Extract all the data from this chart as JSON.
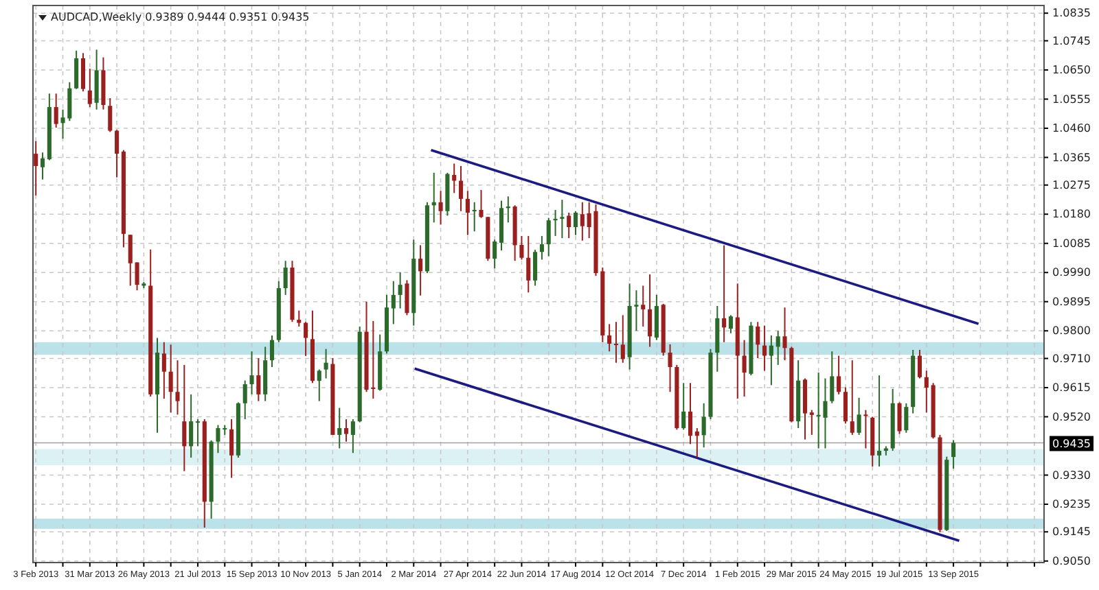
{
  "chart_data": {
    "type": "candlestick",
    "title": "AUDCAD,Weekly 0.9389 0.9444 0.9351 0.9435",
    "x": [
      "2013-02-03",
      "2013-02-10",
      "2013-02-17",
      "2013-02-24",
      "2013-03-03",
      "2013-03-10",
      "2013-03-17",
      "2013-03-24",
      "2013-03-31",
      "2013-04-07",
      "2013-04-14",
      "2013-04-21",
      "2013-04-28",
      "2013-05-05",
      "2013-05-12",
      "2013-05-19",
      "2013-05-26",
      "2013-06-02",
      "2013-06-09",
      "2013-06-16",
      "2013-06-23",
      "2013-06-30",
      "2013-07-07",
      "2013-07-14",
      "2013-07-21",
      "2013-07-28",
      "2013-08-04",
      "2013-08-11",
      "2013-08-18",
      "2013-08-25",
      "2013-09-01",
      "2013-09-08",
      "2013-09-15",
      "2013-09-22",
      "2013-09-29",
      "2013-10-06",
      "2013-10-13",
      "2013-10-20",
      "2013-10-27",
      "2013-11-03",
      "2013-11-10",
      "2013-11-17",
      "2013-11-24",
      "2013-12-01",
      "2013-12-08",
      "2013-12-15",
      "2013-12-22",
      "2013-12-29",
      "2014-01-05",
      "2014-01-12",
      "2014-01-19",
      "2014-01-26",
      "2014-02-02",
      "2014-02-09",
      "2014-02-16",
      "2014-02-23",
      "2014-03-02",
      "2014-03-09",
      "2014-03-16",
      "2014-03-23",
      "2014-03-30",
      "2014-04-06",
      "2014-04-13",
      "2014-04-20",
      "2014-04-27",
      "2014-05-04",
      "2014-05-11",
      "2014-05-18",
      "2014-05-25",
      "2014-06-01",
      "2014-06-08",
      "2014-06-15",
      "2014-06-22",
      "2014-06-29",
      "2014-07-06",
      "2014-07-13",
      "2014-07-20",
      "2014-07-27",
      "2014-08-03",
      "2014-08-10",
      "2014-08-17",
      "2014-08-24",
      "2014-08-31",
      "2014-09-07",
      "2014-09-14",
      "2014-09-21",
      "2014-09-28",
      "2014-10-05",
      "2014-10-12",
      "2014-10-19",
      "2014-10-26",
      "2014-11-02",
      "2014-11-09",
      "2014-11-16",
      "2014-11-23",
      "2014-11-30",
      "2014-12-07",
      "2014-12-14",
      "2014-12-21",
      "2014-12-28",
      "2015-01-04",
      "2015-01-11",
      "2015-01-18",
      "2015-01-25",
      "2015-02-01",
      "2015-02-08",
      "2015-02-15",
      "2015-02-22",
      "2015-03-01",
      "2015-03-08",
      "2015-03-15",
      "2015-03-22",
      "2015-03-29",
      "2015-04-05",
      "2015-04-12",
      "2015-04-19",
      "2015-04-26",
      "2015-05-03",
      "2015-05-10",
      "2015-05-17",
      "2015-05-24",
      "2015-05-31",
      "2015-06-07",
      "2015-06-14",
      "2015-06-21",
      "2015-06-28",
      "2015-07-05",
      "2015-07-12",
      "2015-07-19",
      "2015-07-26",
      "2015-08-02",
      "2015-08-09",
      "2015-08-16",
      "2015-08-23",
      "2015-08-30",
      "2015-09-06",
      "2015-09-13"
    ],
    "ohlc": [
      [
        1.0377,
        1.0418,
        1.0241,
        1.0337
      ],
      [
        1.0333,
        1.0381,
        1.0293,
        1.0362
      ],
      [
        1.0359,
        1.0573,
        1.0356,
        1.0529
      ],
      [
        1.0529,
        1.0573,
        1.0462,
        1.0474
      ],
      [
        1.0477,
        1.0521,
        1.0426,
        1.0495
      ],
      [
        1.0492,
        1.061,
        1.0484,
        1.059
      ],
      [
        1.059,
        1.0713,
        1.0588,
        1.0688
      ],
      [
        1.0688,
        1.0705,
        1.058,
        1.0588
      ],
      [
        1.0583,
        1.0654,
        1.0529,
        1.0539
      ],
      [
        1.0543,
        1.0716,
        1.0521,
        1.0649
      ],
      [
        1.0649,
        1.0691,
        1.0521,
        1.0536
      ],
      [
        1.0533,
        1.0558,
        1.0448,
        1.0452
      ],
      [
        1.0452,
        1.0455,
        1.03,
        1.0377
      ],
      [
        1.0384,
        1.0389,
        1.0072,
        1.0116
      ],
      [
        1.0113,
        1.0113,
        0.9947,
        1.002
      ],
      [
        1.0023,
        1.0023,
        0.9932,
        0.995
      ],
      [
        0.9947,
        0.9959,
        0.9939,
        0.9954
      ],
      [
        0.9947,
        1.0065,
        0.9586,
        0.9593
      ],
      [
        0.9593,
        0.9777,
        0.9468,
        0.9729
      ],
      [
        0.9726,
        0.9763,
        0.9579,
        0.9667
      ],
      [
        0.9667,
        0.9755,
        0.9534,
        0.9601
      ],
      [
        0.9601,
        0.9704,
        0.9527,
        0.9571
      ],
      [
        0.9505,
        0.9689,
        0.9343,
        0.9424
      ],
      [
        0.9424,
        0.9593,
        0.9387,
        0.9505
      ],
      [
        0.9502,
        0.9512,
        0.9424,
        0.9505
      ],
      [
        0.9505,
        0.9512,
        0.9159,
        0.9243
      ],
      [
        0.9243,
        0.9443,
        0.9188,
        0.9439
      ],
      [
        0.9439,
        0.9493,
        0.9402,
        0.9483
      ],
      [
        0.948,
        0.9493,
        0.9461,
        0.9483
      ],
      [
        0.9479,
        0.9512,
        0.9321,
        0.9394
      ],
      [
        0.9394,
        0.9567,
        0.9387,
        0.9564
      ],
      [
        0.9564,
        0.9638,
        0.9512,
        0.9626
      ],
      [
        0.9626,
        0.9733,
        0.9593,
        0.9655
      ],
      [
        0.9655,
        0.9711,
        0.9571,
        0.9593
      ],
      [
        0.9593,
        0.9748,
        0.9571,
        0.9704
      ],
      [
        0.9704,
        0.9785,
        0.9682,
        0.977
      ],
      [
        0.977,
        0.9962,
        0.9763,
        0.9939
      ],
      [
        0.9939,
        1.0028,
        0.9917,
        1.0006
      ],
      [
        1.0006,
        1.0028,
        0.9829,
        0.9836
      ],
      [
        0.9836,
        0.9866,
        0.9814,
        0.9826
      ],
      [
        0.9826,
        0.9829,
        0.9718,
        0.9777
      ],
      [
        0.9773,
        0.9866,
        0.963,
        0.9637
      ],
      [
        0.9637,
        0.9674,
        0.9571,
        0.967
      ],
      [
        0.9674,
        0.9741,
        0.9645,
        0.9696
      ],
      [
        0.9692,
        0.9711,
        0.9461,
        0.9461
      ],
      [
        0.9461,
        0.9549,
        0.9417,
        0.9483
      ],
      [
        0.9483,
        0.9512,
        0.9439,
        0.9464
      ],
      [
        0.9461,
        0.9512,
        0.9402,
        0.9505
      ],
      [
        0.9505,
        0.9814,
        0.9502,
        0.9797
      ],
      [
        0.9797,
        0.9895,
        0.9601,
        0.9608
      ],
      [
        0.9615,
        0.9832,
        0.9579,
        0.9611
      ],
      [
        0.9608,
        0.9788,
        0.9605,
        0.9733
      ],
      [
        0.9733,
        0.9917,
        0.9726,
        0.9876
      ],
      [
        0.9873,
        0.9962,
        0.9822,
        0.9917
      ],
      [
        0.9917,
        0.9991,
        0.9873,
        0.995
      ],
      [
        0.9954,
        0.9965,
        0.9851,
        0.9858
      ],
      [
        0.9858,
        1.0097,
        0.9817,
        1.0035
      ],
      [
        1.0035,
        1.0079,
        0.9915,
        0.9994
      ],
      [
        0.9994,
        1.0219,
        0.9988,
        1.0209
      ],
      [
        1.0209,
        1.0315,
        1.0153,
        1.0219
      ],
      [
        1.0219,
        1.0256,
        1.0146,
        1.019
      ],
      [
        1.019,
        1.0315,
        1.0175,
        1.0311
      ],
      [
        1.0308,
        1.0345,
        1.0249,
        1.0289
      ],
      [
        1.0289,
        1.0337,
        1.019,
        1.023
      ],
      [
        1.023,
        1.0256,
        1.0112,
        1.0185
      ],
      [
        1.019,
        1.0219,
        1.0124,
        1.0194
      ],
      [
        1.0194,
        1.0259,
        1.0168,
        1.0171
      ],
      [
        1.0171,
        1.0171,
        1.0028,
        1.0035
      ],
      [
        1.0035,
        1.0097,
        1.0003,
        1.0091
      ],
      [
        1.0087,
        1.0224,
        1.0062,
        1.02
      ],
      [
        1.02,
        1.0238,
        1.0153,
        1.0205
      ],
      [
        1.0205,
        1.0209,
        1.0028,
        1.0079
      ],
      [
        1.008,
        1.0109,
        1.0032,
        1.0038
      ],
      [
        1.0038,
        1.0109,
        0.9925,
        0.9964
      ],
      [
        0.9964,
        1.0064,
        0.9947,
        1.0057
      ],
      [
        1.0057,
        1.0109,
        1.0032,
        1.0082
      ],
      [
        1.0082,
        1.0168,
        1.0043,
        1.016
      ],
      [
        1.016,
        1.0194,
        1.0109,
        1.0165
      ],
      [
        1.0165,
        1.0227,
        1.0102,
        1.0171
      ],
      [
        1.0175,
        1.0185,
        1.0102,
        1.0138
      ],
      [
        1.0138,
        1.019,
        1.0112,
        1.0185
      ],
      [
        1.018,
        1.0219,
        1.0094,
        1.0141
      ],
      [
        1.0183,
        1.0219,
        1.0102,
        1.0138
      ],
      [
        1.019,
        1.0212,
        0.9979,
        0.9988
      ],
      [
        0.9994,
        1.0006,
        0.9763,
        0.9785
      ],
      [
        0.9785,
        0.9822,
        0.9733,
        0.9758
      ],
      [
        0.9758,
        0.9829,
        0.9696,
        0.9755
      ],
      [
        0.9755,
        0.9851,
        0.9696,
        0.9708
      ],
      [
        0.9714,
        0.9954,
        0.9674,
        0.9881
      ],
      [
        0.9879,
        0.9932,
        0.98,
        0.9885
      ],
      [
        0.9885,
        0.9947,
        0.9814,
        0.987
      ],
      [
        0.987,
        0.9984,
        0.9748,
        0.9782
      ],
      [
        0.9778,
        0.9917,
        0.977,
        0.9881
      ],
      [
        0.9885,
        0.9888,
        0.9719,
        0.9729
      ],
      [
        0.9729,
        0.9756,
        0.9601,
        0.9682
      ],
      [
        0.9682,
        0.9689,
        0.9478,
        0.9483
      ],
      [
        0.9483,
        0.963,
        0.9478,
        0.9537
      ],
      [
        0.9537,
        0.963,
        0.9431,
        0.9458
      ],
      [
        0.9472,
        0.9483,
        0.9387,
        0.9458
      ],
      [
        0.946,
        0.9564,
        0.942,
        0.952
      ],
      [
        0.952,
        0.9741,
        0.9512,
        0.9729
      ],
      [
        0.9729,
        0.9881,
        0.9667,
        0.9841
      ],
      [
        0.9841,
        1.0079,
        0.9763,
        0.9811
      ],
      [
        0.9807,
        0.9851,
        0.9792,
        0.9847
      ],
      [
        0.9844,
        0.9954,
        0.9579,
        0.9719
      ],
      [
        0.9719,
        0.977,
        0.9586,
        0.9664
      ],
      [
        0.966,
        0.9829,
        0.9655,
        0.9817
      ],
      [
        0.9814,
        0.9829,
        0.9711,
        0.9755
      ],
      [
        0.9752,
        0.9817,
        0.967,
        0.9719
      ],
      [
        0.9719,
        0.9785,
        0.9623,
        0.9752
      ],
      [
        0.9748,
        0.98,
        0.9689,
        0.9782
      ],
      [
        0.9782,
        0.9876,
        0.9704,
        0.9744
      ],
      [
        0.9744,
        0.9748,
        0.9502,
        0.9505
      ],
      [
        0.9505,
        0.9704,
        0.9483,
        0.9638
      ],
      [
        0.9641,
        0.9645,
        0.9446,
        0.9531
      ],
      [
        0.9534,
        0.9542,
        0.9461,
        0.9526
      ],
      [
        0.9523,
        0.9664,
        0.9417,
        0.9526
      ],
      [
        0.9517,
        0.9645,
        0.9417,
        0.9571
      ],
      [
        0.9571,
        0.9733,
        0.9564,
        0.9652
      ],
      [
        0.9652,
        0.9719,
        0.9593,
        0.9601
      ],
      [
        0.9601,
        0.9616,
        0.9498,
        0.9505
      ],
      [
        0.9505,
        0.9704,
        0.9461,
        0.9468
      ],
      [
        0.9468,
        0.9582,
        0.9461,
        0.9527
      ],
      [
        0.9527,
        0.9542,
        0.9417,
        0.9523
      ],
      [
        0.9517,
        0.952,
        0.9358,
        0.9394
      ],
      [
        0.9394,
        0.9655,
        0.9358,
        0.9409
      ],
      [
        0.9409,
        0.9424,
        0.9394,
        0.9417
      ],
      [
        0.9417,
        0.9611,
        0.9409,
        0.9564
      ],
      [
        0.9564,
        0.9567,
        0.9464,
        0.9473
      ],
      [
        0.9476,
        0.9564,
        0.9468,
        0.9552
      ],
      [
        0.9552,
        0.9738,
        0.9531,
        0.9719
      ],
      [
        0.9719,
        0.9738,
        0.9645,
        0.9649
      ],
      [
        0.9649,
        0.967,
        0.9534,
        0.9615
      ],
      [
        0.9623,
        0.963,
        0.9449,
        0.9453
      ],
      [
        0.9453,
        0.9461,
        0.9144,
        0.9151
      ],
      [
        0.9151,
        0.939,
        0.9148,
        0.938
      ],
      [
        0.9389,
        0.9444,
        0.9351,
        0.9435
      ]
    ],
    "series": [
      {
        "type": "line",
        "x": [
          "2014-03-20",
          "2015-10-09"
        ],
        "values": [
          1.0389,
          0.9823
        ],
        "color": "#1c1c80"
      },
      {
        "type": "line",
        "x": [
          "2014-03-03",
          "2015-09-19"
        ],
        "values": [
          0.9677,
          0.9116
        ],
        "color": "#1c1c80"
      }
    ],
    "bands": [
      {
        "axis": "y",
        "from": 0.9155,
        "to": 0.9188,
        "color": "#a9dbe2"
      },
      {
        "axis": "y",
        "from": 0.9362,
        "to": 0.9415,
        "color": "#d3edf1"
      },
      {
        "axis": "y",
        "from": 0.9722,
        "to": 0.9763,
        "color": "#a9dbe2"
      }
    ],
    "ref_lines": [
      {
        "axis": "y",
        "value": 0.9435,
        "label": "0.9435",
        "color": "#a0a0a0"
      }
    ],
    "xlim": [
      "2013-01-31",
      "2015-12-16"
    ],
    "xticks": [
      {
        "value": "2013-02-03",
        "label": "3 Feb 2013"
      },
      {
        "value": "2013-03-03",
        "label": null
      },
      {
        "value": "2013-03-31",
        "label": "31 Mar 2013"
      },
      {
        "value": "2013-04-28",
        "label": null
      },
      {
        "value": "2013-05-26",
        "label": "26 May 2013"
      },
      {
        "value": "2013-06-23",
        "label": null
      },
      {
        "value": "2013-07-21",
        "label": "21 Jul 2013"
      },
      {
        "value": "2013-08-18",
        "label": null
      },
      {
        "value": "2013-09-15",
        "label": "15 Sep 2013"
      },
      {
        "value": "2013-10-13",
        "label": null
      },
      {
        "value": "2013-11-10",
        "label": "10 Nov 2013"
      },
      {
        "value": "2013-12-08",
        "label": null
      },
      {
        "value": "2014-01-05",
        "label": "5 Jan 2014"
      },
      {
        "value": "2014-02-02",
        "label": null
      },
      {
        "value": "2014-03-02",
        "label": "2 Mar 2014"
      },
      {
        "value": "2014-03-30",
        "label": null
      },
      {
        "value": "2014-04-27",
        "label": "27 Apr 2014"
      },
      {
        "value": "2014-05-25",
        "label": null
      },
      {
        "value": "2014-06-22",
        "label": "22 Jun 2014"
      },
      {
        "value": "2014-07-20",
        "label": null
      },
      {
        "value": "2014-08-17",
        "label": "17 Aug 2014"
      },
      {
        "value": "2014-09-14",
        "label": null
      },
      {
        "value": "2014-10-12",
        "label": "12 Oct 2014"
      },
      {
        "value": "2014-11-09",
        "label": null
      },
      {
        "value": "2014-12-07",
        "label": "7 Dec 2014"
      },
      {
        "value": "2015-01-04",
        "label": null
      },
      {
        "value": "2015-02-01",
        "label": "1 Feb 2015"
      },
      {
        "value": "2015-03-01",
        "label": null
      },
      {
        "value": "2015-03-29",
        "label": "29 Mar 2015"
      },
      {
        "value": "2015-04-26",
        "label": null
      },
      {
        "value": "2015-05-24",
        "label": "24 May 2015"
      },
      {
        "value": "2015-06-21",
        "label": null
      },
      {
        "value": "2015-07-19",
        "label": "19 Jul 2015"
      },
      {
        "value": "2015-08-16",
        "label": null
      },
      {
        "value": "2015-09-13",
        "label": "13 Sep 2015"
      },
      {
        "value": "2015-10-11",
        "label": null
      },
      {
        "value": "2015-11-08",
        "label": null
      },
      {
        "value": "2015-12-06",
        "label": null
      }
    ],
    "ylim": [
      0.9045,
      1.086
    ],
    "yticks": [
      1.0835,
      1.0745,
      {
        "value": 1.065,
        "label": "1.0650"
      },
      1.0555,
      {
        "value": 1.046,
        "label": "1.0460"
      },
      1.0365,
      1.0275,
      {
        "value": 1.018,
        "label": "1.0180"
      },
      1.0085,
      {
        "value": 0.999,
        "label": "0.9990"
      },
      0.9895,
      {
        "value": 0.98,
        "label": "0.9800"
      },
      {
        "value": 0.971,
        "label": "0.9710"
      },
      0.9615,
      {
        "value": 0.952,
        "label": "0.9520"
      },
      {
        "value": 0.933,
        "label": "0.9330"
      },
      0.9235,
      0.9145,
      {
        "value": 0.905,
        "label": "0.9050"
      }
    ],
    "grid": true
  }
}
